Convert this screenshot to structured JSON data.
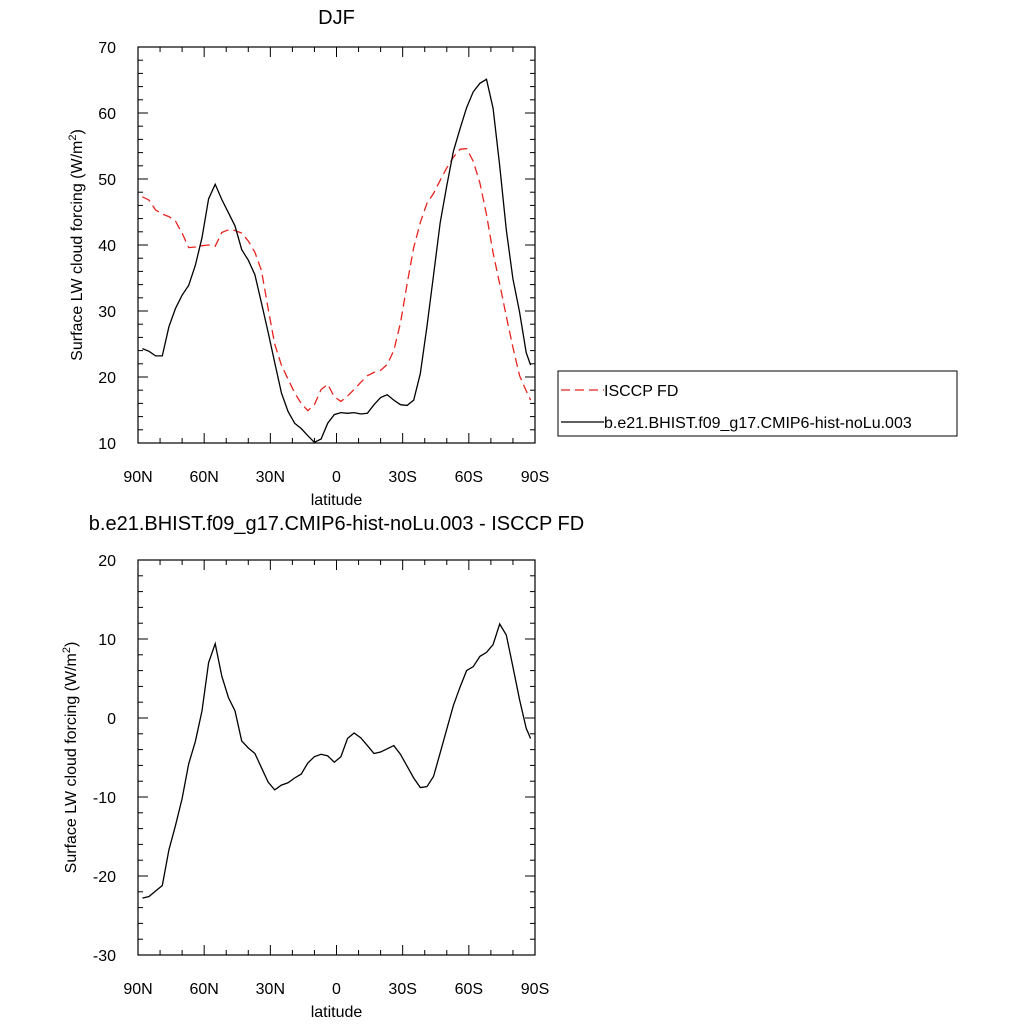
{
  "chart_data": [
    {
      "type": "line",
      "title": "DJF",
      "xlabel": "latitude",
      "ylabel": "Surface LW cloud forcing (W/m",
      "ylabel_sup": "2",
      "ylabel_tail": ")",
      "xlim": [
        90,
        -90
      ],
      "ylim": [
        10,
        70
      ],
      "x_ticks": [
        90,
        60,
        30,
        0,
        -30,
        -60,
        -90
      ],
      "x_tick_labels": [
        "90N",
        "60N",
        "30N",
        "0",
        "30S",
        "60S",
        "90S"
      ],
      "y_ticks": [
        10,
        20,
        30,
        40,
        50,
        60,
        70
      ],
      "y_tick_labels": [
        "10",
        "20",
        "30",
        "40",
        "50",
        "60",
        "70"
      ],
      "grid": false,
      "legend_position": "right",
      "series": [
        {
          "name": "ISCCP FD",
          "color": "#e8231f",
          "dash": "dashed",
          "x": [
            88,
            85,
            82,
            79,
            76,
            73,
            70,
            67,
            64,
            61,
            58,
            55,
            52,
            49,
            46,
            43,
            40,
            37,
            34,
            31,
            28,
            25,
            22,
            19,
            16,
            13,
            10,
            7,
            4,
            1,
            -2,
            -5,
            -8,
            -11,
            -14,
            -17,
            -20,
            -23,
            -26,
            -29,
            -32,
            -35,
            -38,
            -41,
            -44,
            -47,
            -50,
            -53,
            -56,
            -59,
            -62,
            -65,
            -68,
            -71,
            -74,
            -77,
            -80,
            -83,
            -86,
            -88
          ],
          "values": [
            47.3,
            46.8,
            45.3,
            44.7,
            44.3,
            43.6,
            41.8,
            39.6,
            39.7,
            39.9,
            40.0,
            39.8,
            41.9,
            42.3,
            42.2,
            41.8,
            40.6,
            38.9,
            36.1,
            30.4,
            25.0,
            21.8,
            19.7,
            17.6,
            16.0,
            14.9,
            15.8,
            18.1,
            18.9,
            17.0,
            16.3,
            17.1,
            18.1,
            19.2,
            20.2,
            20.7,
            21.0,
            21.9,
            24.0,
            28.2,
            34.1,
            39.6,
            43.4,
            46.3,
            47.8,
            49.8,
            51.7,
            53.3,
            54.5,
            54.6,
            52.7,
            49.4,
            44.6,
            38.8,
            34.1,
            29.2,
            24.5,
            20.2,
            17.9,
            16.5
          ]
        },
        {
          "name": "b.e21.BHIST.f09_g17.CMIP6-hist-noLu.003",
          "color": "#000000",
          "dash": "solid",
          "x": [
            88,
            85,
            82,
            79,
            76,
            73,
            70,
            67,
            64,
            61,
            58,
            55,
            52,
            49,
            46,
            43,
            40,
            37,
            34,
            31,
            28,
            25,
            22,
            19,
            16,
            13,
            10,
            7,
            4,
            1,
            -2,
            -5,
            -8,
            -11,
            -14,
            -17,
            -20,
            -23,
            -26,
            -29,
            -32,
            -35,
            -38,
            -41,
            -44,
            -47,
            -50,
            -53,
            -56,
            -59,
            -62,
            -65,
            -68,
            -71,
            -74,
            -77,
            -80,
            -83,
            -86,
            -88
          ],
          "values": [
            24.3,
            23.9,
            23.2,
            23.2,
            27.6,
            30.4,
            32.4,
            33.9,
            36.9,
            41.1,
            47.0,
            49.2,
            46.9,
            44.9,
            42.9,
            39.3,
            37.7,
            35.5,
            31.2,
            26.8,
            22.2,
            17.6,
            14.8,
            13.0,
            12.2,
            11.1,
            10.1,
            10.6,
            13.0,
            14.3,
            14.6,
            14.5,
            14.6,
            14.4,
            14.5,
            15.8,
            16.9,
            17.3,
            16.5,
            15.8,
            15.7,
            16.5,
            20.5,
            27.6,
            35.4,
            43.4,
            49.0,
            54.2,
            57.6,
            60.8,
            63.2,
            64.5,
            65.1,
            60.7,
            52.0,
            42.3,
            34.9,
            29.8,
            23.7,
            21.8
          ]
        }
      ]
    },
    {
      "type": "line",
      "title": "b.e21.BHIST.f09_g17.CMIP6-hist-noLu.003 - ISCCP FD",
      "xlabel": "latitude",
      "ylabel": "Surface LW cloud forcing (W/m",
      "ylabel_sup": "2",
      "ylabel_tail": ")",
      "xlim": [
        90,
        -90
      ],
      "ylim": [
        -30,
        20
      ],
      "x_ticks": [
        90,
        60,
        30,
        0,
        -30,
        -60,
        -90
      ],
      "x_tick_labels": [
        "90N",
        "60N",
        "30N",
        "0",
        "30S",
        "60S",
        "90S"
      ],
      "y_ticks": [
        -30,
        -20,
        -10,
        0,
        10,
        20
      ],
      "y_tick_labels": [
        "-30",
        "-20",
        "-10",
        "0",
        "10",
        "20"
      ],
      "grid": false,
      "series": [
        {
          "color": "#000000",
          "dash": "solid",
          "x": [
            88,
            85,
            82,
            79,
            76,
            73,
            70,
            67,
            64,
            61,
            58,
            55,
            52,
            49,
            46,
            43,
            40,
            37,
            34,
            31,
            28,
            25,
            22,
            19,
            16,
            13,
            10,
            7,
            4,
            1,
            -2,
            -5,
            -8,
            -11,
            -14,
            -17,
            -20,
            -23,
            -26,
            -29,
            -32,
            -35,
            -38,
            -41,
            -44,
            -47,
            -50,
            -53,
            -56,
            -59,
            -62,
            -65,
            -68,
            -71,
            -74,
            -77,
            -80,
            -83,
            -86,
            -88
          ],
          "values": [
            -22.8,
            -22.6,
            -21.9,
            -21.2,
            -16.7,
            -13.6,
            -10.2,
            -5.8,
            -3.0,
            0.9,
            7.0,
            9.4,
            5.3,
            2.6,
            0.9,
            -2.9,
            -3.8,
            -4.5,
            -6.3,
            -8.1,
            -9.1,
            -8.5,
            -8.2,
            -7.6,
            -7.1,
            -5.7,
            -4.9,
            -4.6,
            -4.8,
            -5.6,
            -4.9,
            -2.6,
            -1.9,
            -2.5,
            -3.5,
            -4.5,
            -4.3,
            -3.9,
            -3.5,
            -4.6,
            -6.1,
            -7.6,
            -8.8,
            -8.7,
            -7.4,
            -4.4,
            -1.4,
            1.6,
            3.9,
            6.0,
            6.5,
            7.8,
            8.3,
            9.3,
            11.9,
            10.5,
            6.5,
            2.3,
            -1.3,
            -2.6
          ]
        }
      ]
    }
  ]
}
